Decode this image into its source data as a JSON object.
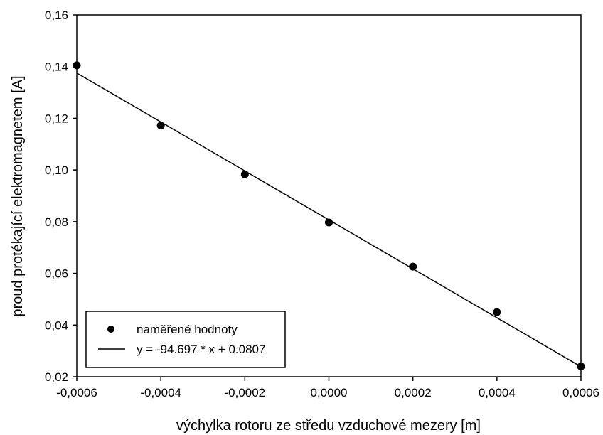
{
  "chart_data": {
    "type": "scatter",
    "xlabel": "výchylka rotoru ze středu vzduchové mezery [m]",
    "ylabel": "proud protékající elektromagnetem [A]",
    "xlim": [
      -0.0006,
      0.0006
    ],
    "ylim": [
      0.02,
      0.16
    ],
    "x_ticks": [
      -0.0006,
      -0.0004,
      -0.0002,
      0.0,
      0.0002,
      0.0004,
      0.0006
    ],
    "x_tick_labels": [
      "-0,0006",
      "-0,0004",
      "-0,0002",
      "0,0000",
      "0,0002",
      "0,0004",
      "0,0006"
    ],
    "y_ticks": [
      0.02,
      0.04,
      0.06,
      0.08,
      0.1,
      0.12,
      0.14,
      0.16
    ],
    "y_tick_labels": [
      "0,02",
      "0,04",
      "0,06",
      "0,08",
      "0,10",
      "0,12",
      "0,14",
      "0,16"
    ],
    "grid": false,
    "legend_position": "bottom-left",
    "series": [
      {
        "name": "naměřené hodnoty",
        "kind": "scatter",
        "color": "#000000",
        "points": [
          {
            "x": -0.0006,
            "y": 0.1405
          },
          {
            "x": -0.0004,
            "y": 0.1172
          },
          {
            "x": -0.0002,
            "y": 0.0983
          },
          {
            "x": 0.0,
            "y": 0.0797
          },
          {
            "x": 0.0002,
            "y": 0.0626
          },
          {
            "x": 0.0004,
            "y": 0.045
          },
          {
            "x": 0.0006,
            "y": 0.024
          }
        ]
      },
      {
        "name": "y = -94.697 * x + 0.0807",
        "kind": "line",
        "color": "#000000",
        "slope": -94.697,
        "intercept": 0.0807,
        "x_range": [
          -0.0006,
          0.0006
        ]
      }
    ]
  }
}
